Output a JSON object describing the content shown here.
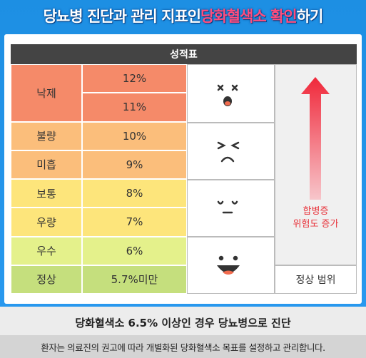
{
  "header": {
    "title_parts": [
      "당뇨병 진단과 관리 지표인 ",
      "당화혈색소 확인",
      "하기"
    ]
  },
  "table": {
    "title": "성적표",
    "grades": [
      {
        "label": "낙제",
        "values": [
          "12%",
          "11%"
        ]
      },
      {
        "label": "불량",
        "values": [
          "10%"
        ]
      },
      {
        "label": "미흡",
        "values": [
          "9%"
        ]
      },
      {
        "label": "보통",
        "values": [
          "8%"
        ]
      },
      {
        "label": "우량",
        "values": [
          "7%"
        ]
      },
      {
        "label": "우수",
        "values": [
          "6%"
        ]
      },
      {
        "label": "정상",
        "values": [
          "5.7%미만"
        ]
      }
    ],
    "risk_label": [
      "합병증",
      "위험도 증가"
    ],
    "normal_label": "정상 범위"
  },
  "footer": {
    "headline": "당화혈색소 6.5% 이상인 경우 당뇨병으로 진단",
    "note": "환자는 의료진의 권고에 따라 개별화된 당화혈색소 목표를 설정하고 관리합니다."
  }
}
